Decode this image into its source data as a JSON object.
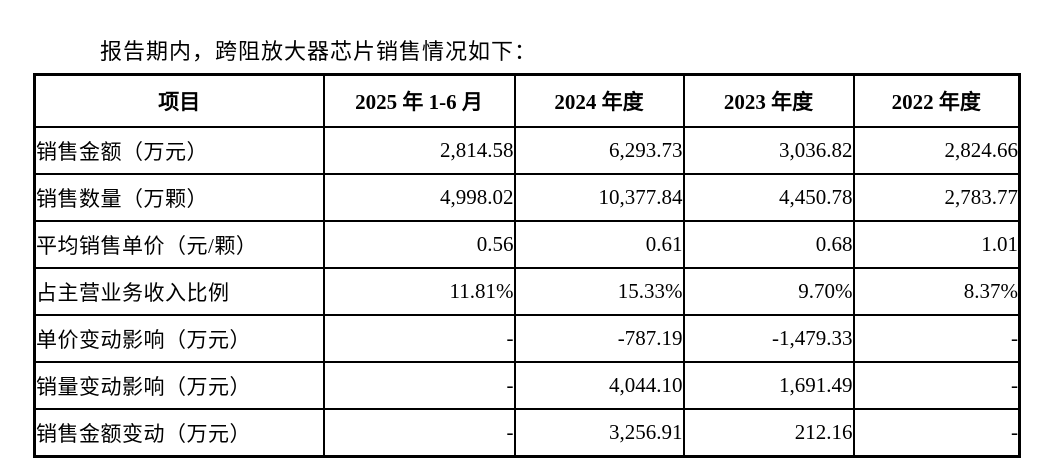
{
  "intro_text": "报告期内，跨阻放大器芯片销售情况如下：",
  "table": {
    "columns": [
      "项目",
      "2025 年 1-6 月",
      "2024 年度",
      "2023 年度",
      "2022 年度"
    ],
    "rows": [
      {
        "label": "销售金额（万元）",
        "values": [
          "2,814.58",
          "6,293.73",
          "3,036.82",
          "2,824.66"
        ]
      },
      {
        "label": "销售数量（万颗）",
        "values": [
          "4,998.02",
          "10,377.84",
          "4,450.78",
          "2,783.77"
        ]
      },
      {
        "label": "平均销售单价（元/颗）",
        "values": [
          "0.56",
          "0.61",
          "0.68",
          "1.01"
        ]
      },
      {
        "label": "占主营业务收入比例",
        "values": [
          "11.81%",
          "15.33%",
          "9.70%",
          "8.37%"
        ]
      },
      {
        "label": "单价变动影响（万元）",
        "values": [
          "-",
          "-787.19",
          "-1,479.33",
          "-"
        ]
      },
      {
        "label": "销量变动影响（万元）",
        "values": [
          "-",
          "4,044.10",
          "1,691.49",
          "-"
        ]
      },
      {
        "label": "销售金额变动（万元）",
        "values": [
          "-",
          "3,256.91",
          "212.16",
          "-"
        ]
      }
    ]
  }
}
